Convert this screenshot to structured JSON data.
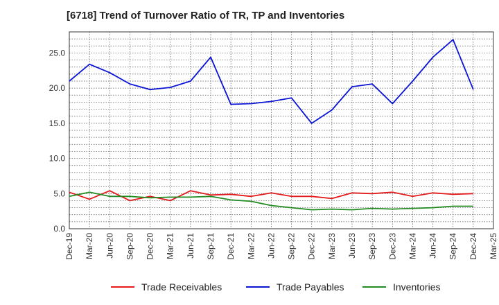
{
  "title": "[6718]  Trend of Turnover Ratio of TR, TP and Inventories",
  "chart_data": {
    "type": "line",
    "title": "[6718]  Trend of Turnover Ratio of TR, TP and Inventories",
    "xlabel": "",
    "ylabel": "",
    "ylim": [
      0,
      28
    ],
    "yticks": [
      0.0,
      5.0,
      10.0,
      15.0,
      20.0,
      25.0
    ],
    "ytick_labels": [
      "0.0",
      "5.0",
      "10.0",
      "15.0",
      "20.0",
      "25.0"
    ],
    "x_tick_labels": [
      "Dec-19",
      "Mar-20",
      "Jun-20",
      "Sep-20",
      "Dec-20",
      "Mar-21",
      "Jun-21",
      "Sep-21",
      "Dec-21",
      "Mar-22",
      "Jun-22",
      "Sep-22",
      "Dec-22",
      "Mar-23",
      "Jun-23",
      "Sep-23",
      "Dec-23",
      "Mar-24",
      "Jun-24",
      "Sep-24",
      "Dec-24",
      "Mar-25"
    ],
    "grid": true,
    "legend_position": "bottom",
    "categories": [
      "Dec-19",
      "Mar-20",
      "Jun-20",
      "Sep-20",
      "Dec-20",
      "Mar-21",
      "Jun-21",
      "Sep-21",
      "Dec-21",
      "Mar-22",
      "Jun-22",
      "Sep-22",
      "Dec-22",
      "Mar-23",
      "Jun-23",
      "Sep-23",
      "Dec-23",
      "Mar-24",
      "Jun-24",
      "Sep-24",
      "Dec-24"
    ],
    "series": [
      {
        "name": "Trade Receivables",
        "color": "#e31a1c",
        "values": [
          5.2,
          4.2,
          5.4,
          4.0,
          4.6,
          4.0,
          5.4,
          4.8,
          4.9,
          4.6,
          5.1,
          4.6,
          4.6,
          4.3,
          5.1,
          5.0,
          5.2,
          4.6,
          5.1,
          4.9,
          5.0
        ]
      },
      {
        "name": "Trade Payables",
        "color": "#0a14d6",
        "values": [
          21.0,
          23.4,
          22.2,
          20.6,
          19.8,
          20.1,
          21.0,
          24.4,
          17.7,
          17.8,
          18.1,
          18.6,
          15.0,
          16.9,
          20.2,
          20.6,
          17.8,
          21.0,
          24.4,
          26.9,
          19.8
        ]
      },
      {
        "name": "Inventories",
        "color": "#228b22",
        "values": [
          4.6,
          5.2,
          4.6,
          4.6,
          4.4,
          4.5,
          4.5,
          4.6,
          4.1,
          3.9,
          3.3,
          3.0,
          2.7,
          2.8,
          2.7,
          2.9,
          2.8,
          2.9,
          3.0,
          3.2,
          3.2
        ]
      }
    ]
  }
}
